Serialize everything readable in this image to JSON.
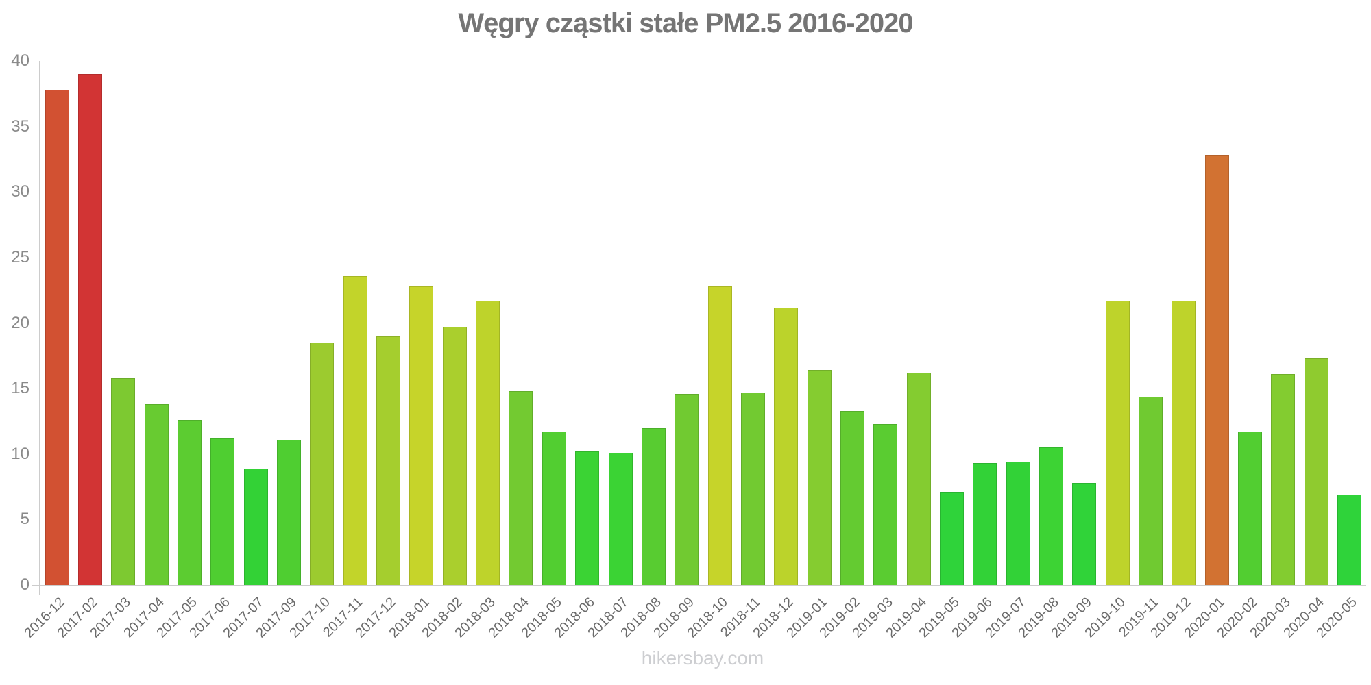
{
  "watermark": "hikersbay.com",
  "chart_data": {
    "type": "bar",
    "title": "Węgry cząstki stałe PM2.5 2016-2020",
    "xlabel": "",
    "ylabel": "",
    "ylim": [
      0,
      40
    ],
    "yticks": [
      0,
      5,
      10,
      15,
      20,
      25,
      30,
      35,
      40
    ],
    "grid": false,
    "legend": false,
    "categories": [
      "2016-12",
      "2017-02",
      "2017-03",
      "2017-04",
      "2017-05",
      "2017-06",
      "2017-07",
      "2017-09",
      "2017-10",
      "2017-11",
      "2017-12",
      "2018-01",
      "2018-02",
      "2018-03",
      "2018-04",
      "2018-05",
      "2018-06",
      "2018-07",
      "2018-08",
      "2018-09",
      "2018-10",
      "2018-11",
      "2018-12",
      "2019-01",
      "2019-02",
      "2019-03",
      "2019-04",
      "2019-05",
      "2019-06",
      "2019-07",
      "2019-08",
      "2019-09",
      "2019-10",
      "2019-11",
      "2019-12",
      "2020-01",
      "2020-02",
      "2020-03",
      "2020-04",
      "2020-05"
    ],
    "values": [
      37.8,
      39.0,
      15.8,
      13.8,
      12.6,
      11.2,
      8.9,
      11.1,
      18.5,
      23.6,
      19.0,
      22.8,
      19.7,
      21.7,
      14.8,
      11.7,
      10.2,
      10.1,
      12.0,
      14.6,
      22.8,
      14.7,
      21.2,
      16.4,
      13.3,
      12.3,
      16.2,
      7.1,
      9.3,
      9.4,
      10.5,
      7.8,
      21.7,
      14.4,
      21.7,
      32.8,
      11.7,
      16.1,
      17.3,
      6.9
    ],
    "bar_colors": [
      "#D25132",
      "#D23434",
      "#7DC931",
      "#68CB31",
      "#5CCC31",
      "#4FCE31",
      "#33D236",
      "#4FCE31",
      "#9CCB2F",
      "#C2D42A",
      "#A5CE2E",
      "#C6D42A",
      "#AACF2D",
      "#BED32B",
      "#73CA31",
      "#52CE31",
      "#3BD334",
      "#3BD334",
      "#58CC31",
      "#71CA31",
      "#C6D42A",
      "#72CA31",
      "#BBD32B",
      "#85CC30",
      "#64CB31",
      "#5ACC31",
      "#84CC30",
      "#2FD33A",
      "#32D237",
      "#32D237",
      "#3DD334",
      "#30D339",
      "#BED32B",
      "#70CA31",
      "#BED32B",
      "#D27232",
      "#52CE31",
      "#83CC30",
      "#8FCB2F",
      "#2FD33A"
    ],
    "colors_meaning": {
      "low_green": "#2FD33A",
      "mid_yellow_green": "#BED32B",
      "high_orange": "#D27232",
      "very_high_red": "#D23434"
    },
    "axis_color": "#cccccc",
    "title_color": "#757575",
    "ytick_label_color": "#8a8a8a",
    "xtick_label_color": "#6a6a6a",
    "watermark_color": "#cdced1"
  }
}
